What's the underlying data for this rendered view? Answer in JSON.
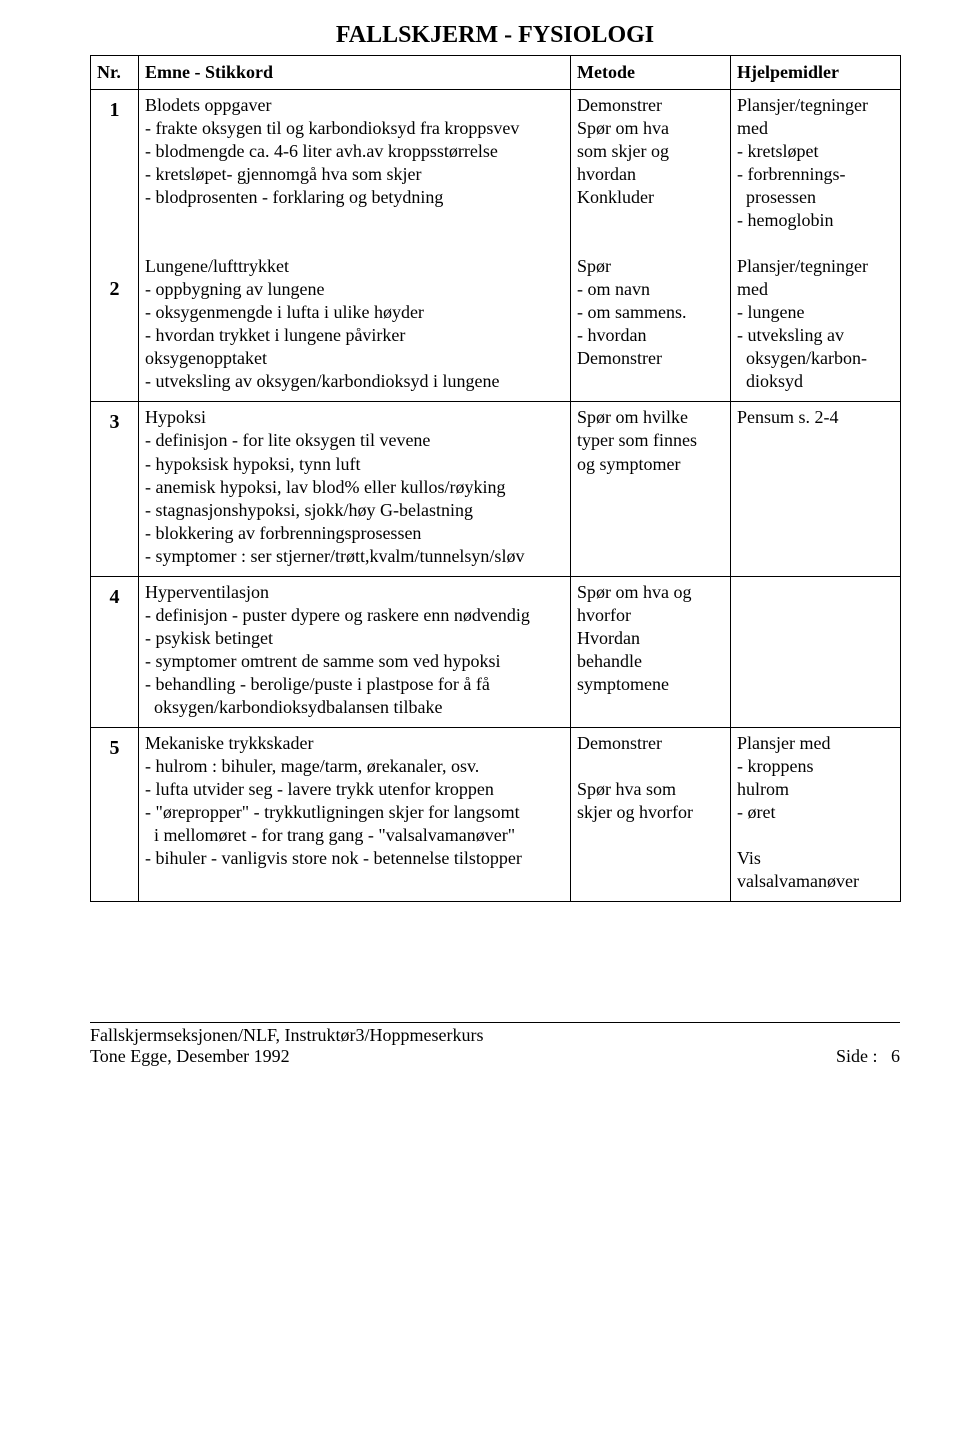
{
  "title": "FALLSKJERM - FYSIOLOGI",
  "header": {
    "nr": "Nr.",
    "emne": "Emne - Stikkord",
    "metode": "Metode",
    "hjelp": "Hjelpemidler"
  },
  "rows": [
    {
      "nr": "1\n\n\n\n\n\n\n2",
      "emne": "Blodets oppgaver\n- frakte oksygen til og karbondioksyd fra kroppsvev\n- blodmengde ca. 4-6 liter avh.av kroppsstørrelse\n- kretsløpet- gjennomgå hva som skjer\n- blodprosenten - forklaring og betydning\n\n\nLungene/lufttrykket\n- oppbygning av lungene\n- oksygenmengde i lufta i ulike høyder\n- hvordan trykket i lungene påvirker\noksygenopptaket\n- utveksling av oksygen/karbondioksyd i lungene",
      "metode": "Demonstrer\nSpør om hva\nsom skjer og\nhvordan\nKonkluder\n\n\nSpør\n- om navn\n- om sammens.\n- hvordan\nDemonstrer",
      "hjelp": "Plansjer/tegninger\nmed\n- kretsløpet\n- forbrennings-\n  prosessen\n- hemoglobin\n\nPlansjer/tegninger\nmed\n- lungene\n- utveksling av\n  oksygen/karbon-\n  dioksyd"
    },
    {
      "nr": "3",
      "emne": "Hypoksi\n- definisjon - for lite oksygen til vevene\n- hypoksisk hypoksi, tynn luft\n- anemisk hypoksi, lav blod% eller kullos/røyking\n- stagnasjonshypoksi, sjokk/høy G-belastning\n- blokkering av forbrenningsprosessen\n- symptomer : ser stjerner/trøtt,kvalm/tunnelsyn/sløv",
      "metode": "Spør om hvilke\ntyper som finnes\nog symptomer",
      "hjelp": "Pensum s. 2-4"
    },
    {
      "nr": "4",
      "emne": "Hyperventilasjon\n- definisjon - puster dypere og raskere enn nødvendig\n- psykisk betinget\n- symptomer omtrent de samme som ved hypoksi\n- behandling - berolige/puste i plastpose for å få\n  oksygen/karbondioksydbalansen tilbake",
      "metode": "Spør om hva og\nhvorfor\nHvordan\nbehandle\nsymptomene",
      "hjelp": ""
    },
    {
      "nr": "5",
      "emne": "Mekaniske trykkskader\n- hulrom : bihuler, mage/tarm, ørekanaler, osv.\n- lufta utvider seg - lavere trykk utenfor kroppen\n- \"ørepropper\" - trykkutligningen skjer for langsomt\n  i mellomøret - for trang gang - \"valsalvamanøver\"\n- bihuler - vanligvis store nok - betennelse tilstopper",
      "metode": "Demonstrer\n\nSpør hva som\nskjer og hvorfor",
      "hjelp": "Plansjer med\n- kroppens\nhulrom\n- øret\n\nVis\nvalsalvamanøver"
    }
  ],
  "footer": {
    "line1": "Fallskjermseksjonen/NLF, Instruktør3/Hoppmeserkurs",
    "line2": "Tone Egge, Desember 1992",
    "page": "Side :   6"
  }
}
